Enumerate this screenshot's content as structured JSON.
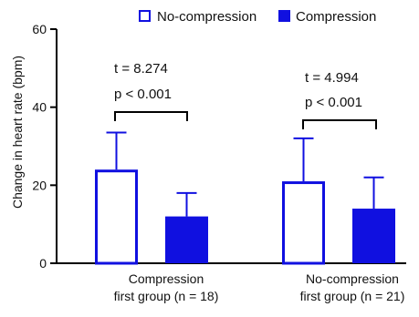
{
  "chart_data": {
    "type": "bar",
    "ylabel": "Change in heart rate (bpm)",
    "xlabel": "",
    "ylim": [
      0,
      60
    ],
    "yticks": [
      0,
      20,
      40,
      60
    ],
    "categories": [
      "Compression\nfirst group (n = 18)",
      "No-compression\nfirst group (n = 21)"
    ],
    "series": [
      {
        "name": "No-compression",
        "values": [
          24,
          21
        ],
        "errors": [
          9.5,
          11
        ],
        "style": "outline"
      },
      {
        "name": "Compression",
        "values": [
          12,
          14
        ],
        "errors": [
          6,
          8
        ],
        "style": "filled"
      }
    ],
    "legend_position": "top-right",
    "annotations": [
      {
        "group": 0,
        "lines": [
          "t = 8.274",
          "p < 0.001"
        ]
      },
      {
        "group": 1,
        "lines": [
          "t = 4.994",
          "p < 0.001"
        ]
      }
    ],
    "colors": {
      "bar": "#1010e0",
      "axis": "#000000"
    }
  }
}
